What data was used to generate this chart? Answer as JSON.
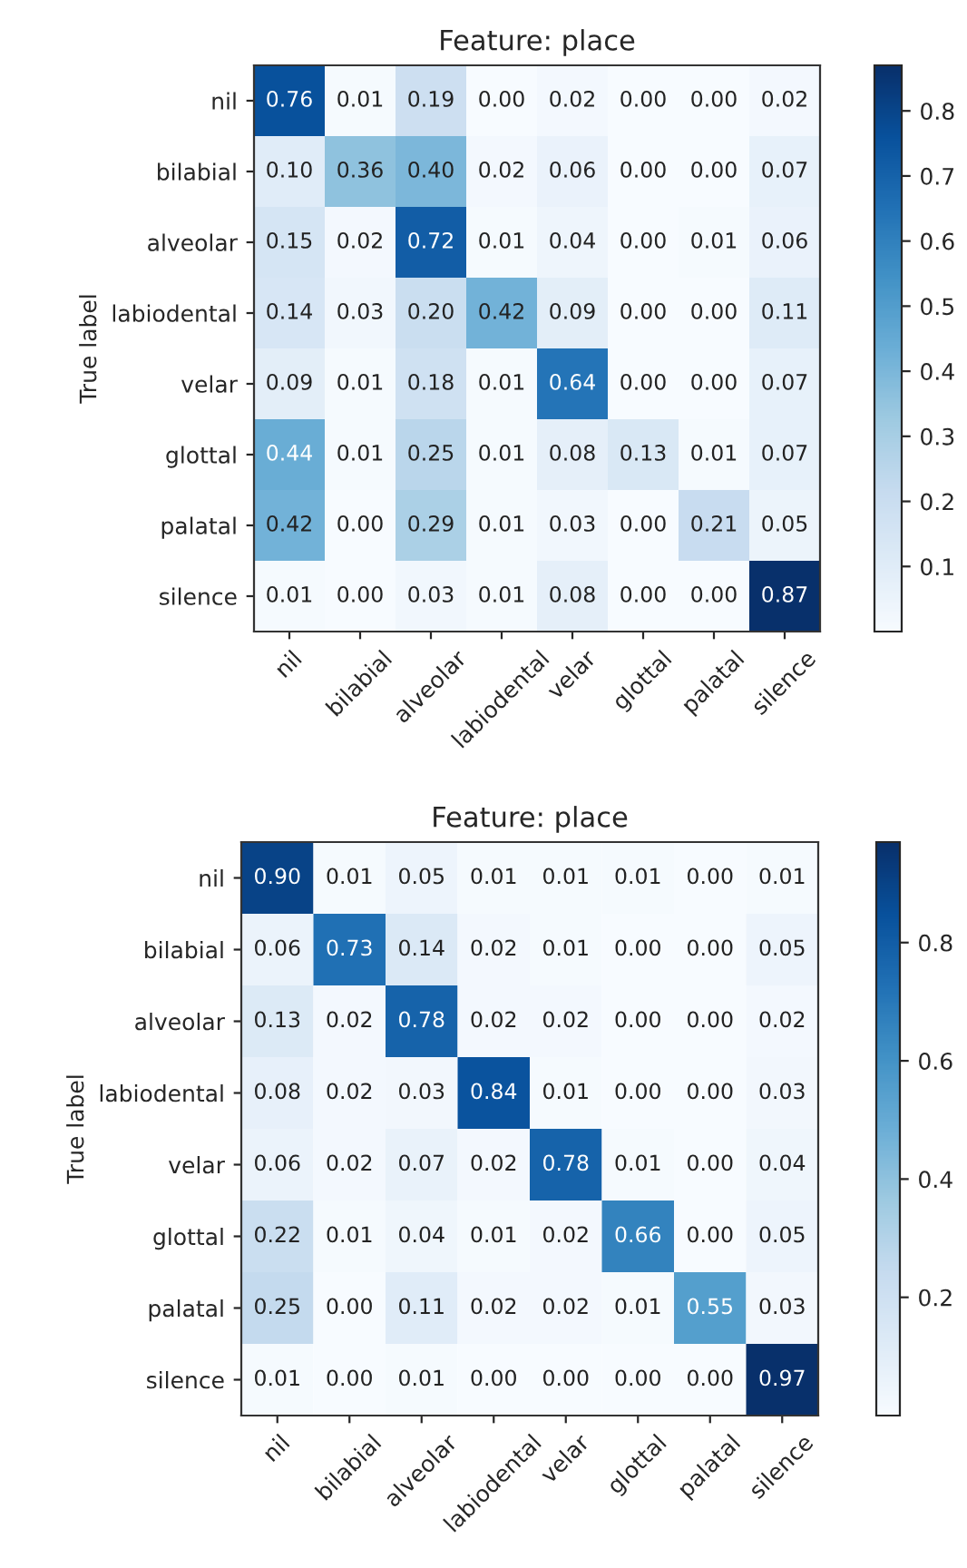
{
  "chart_data": [
    {
      "type": "heatmap",
      "title": "Feature: place",
      "ylabel": "True label",
      "categories": [
        "nil",
        "bilabial",
        "alveolar",
        "labiodental",
        "velar",
        "glottal",
        "palatal",
        "silence"
      ],
      "y_categories": [
        "nil",
        "bilabial",
        "alveolar",
        "labiodental",
        "velar",
        "glottal",
        "palatal",
        "silence"
      ],
      "cells": [
        [
          0.76,
          0.01,
          0.19,
          0.0,
          0.02,
          0.0,
          0.0,
          0.02
        ],
        [
          0.1,
          0.36,
          0.4,
          0.02,
          0.06,
          0.0,
          0.0,
          0.07
        ],
        [
          0.15,
          0.02,
          0.72,
          0.01,
          0.04,
          0.0,
          0.01,
          0.06
        ],
        [
          0.14,
          0.03,
          0.2,
          0.42,
          0.09,
          0.0,
          0.0,
          0.11
        ],
        [
          0.09,
          0.01,
          0.18,
          0.01,
          0.64,
          0.0,
          0.0,
          0.07
        ],
        [
          0.44,
          0.01,
          0.25,
          0.01,
          0.08,
          0.13,
          0.01,
          0.07
        ],
        [
          0.42,
          0.0,
          0.29,
          0.01,
          0.03,
          0.0,
          0.21,
          0.05
        ],
        [
          0.01,
          0.0,
          0.03,
          0.01,
          0.08,
          0.0,
          0.0,
          0.87
        ]
      ],
      "cell_labels": [
        [
          "0.76",
          "0.01",
          "0.19",
          "0.00",
          "0.02",
          "0.00",
          "0.00",
          "0.02"
        ],
        [
          "0.10",
          "0.36",
          "0.40",
          "0.02",
          "0.06",
          "0.00",
          "0.00",
          "0.07"
        ],
        [
          "0.15",
          "0.02",
          "0.72",
          "0.01",
          "0.04",
          "0.00",
          "0.01",
          "0.06"
        ],
        [
          "0.14",
          "0.03",
          "0.20",
          "0.42",
          "0.09",
          "0.00",
          "0.00",
          "0.11"
        ],
        [
          "0.09",
          "0.01",
          "0.18",
          "0.01",
          "0.64",
          "0.00",
          "0.00",
          "0.07"
        ],
        [
          "0.44",
          "0.01",
          "0.25",
          "0.01",
          "0.08",
          "0.13",
          "0.01",
          "0.07"
        ],
        [
          "0.42",
          "0.00",
          "0.29",
          "0.01",
          "0.03",
          "0.00",
          "0.21",
          "0.05"
        ],
        [
          "0.01",
          "0.00",
          "0.03",
          "0.01",
          "0.08",
          "0.00",
          "0.00",
          "0.87"
        ]
      ],
      "clim": [
        0.0,
        0.87
      ],
      "cticks": [
        0.1,
        0.2,
        0.3,
        0.4,
        0.5,
        0.6,
        0.7,
        0.8
      ]
    },
    {
      "type": "heatmap",
      "title": "Feature: place",
      "ylabel": "True label",
      "categories": [
        "nil",
        "bilabial",
        "alveolar",
        "labiodental",
        "velar",
        "glottal",
        "palatal",
        "silence"
      ],
      "y_categories": [
        "nil",
        "bilabial",
        "alveolar",
        "labiodental",
        "velar",
        "glottal",
        "palatal",
        "silence"
      ],
      "cells": [
        [
          0.9,
          0.01,
          0.05,
          0.01,
          0.01,
          0.01,
          0.0,
          0.01
        ],
        [
          0.06,
          0.73,
          0.14,
          0.02,
          0.01,
          0.0,
          0.0,
          0.05
        ],
        [
          0.13,
          0.02,
          0.78,
          0.02,
          0.02,
          0.0,
          0.0,
          0.02
        ],
        [
          0.08,
          0.02,
          0.03,
          0.84,
          0.01,
          0.0,
          0.0,
          0.03
        ],
        [
          0.06,
          0.02,
          0.07,
          0.02,
          0.78,
          0.01,
          0.0,
          0.04
        ],
        [
          0.22,
          0.01,
          0.04,
          0.01,
          0.02,
          0.66,
          0.0,
          0.05
        ],
        [
          0.25,
          0.0,
          0.11,
          0.02,
          0.02,
          0.01,
          0.55,
          0.03
        ],
        [
          0.01,
          0.0,
          0.01,
          0.0,
          0.0,
          0.0,
          0.0,
          0.97
        ]
      ],
      "cell_labels": [
        [
          "0.90",
          "0.01",
          "0.05",
          "0.01",
          "0.01",
          "0.01",
          "0.00",
          "0.01"
        ],
        [
          "0.06",
          "0.73",
          "0.14",
          "0.02",
          "0.01",
          "0.00",
          "0.00",
          "0.05"
        ],
        [
          "0.13",
          "0.02",
          "0.78",
          "0.02",
          "0.02",
          "0.00",
          "0.00",
          "0.02"
        ],
        [
          "0.08",
          "0.02",
          "0.03",
          "0.84",
          "0.01",
          "0.00",
          "0.00",
          "0.03"
        ],
        [
          "0.06",
          "0.02",
          "0.07",
          "0.02",
          "0.78",
          "0.01",
          "0.00",
          "0.04"
        ],
        [
          "0.22",
          "0.01",
          "0.04",
          "0.01",
          "0.02",
          "0.66",
          "0.00",
          "0.05"
        ],
        [
          "0.25",
          "0.00",
          "0.11",
          "0.02",
          "0.02",
          "0.01",
          "0.55",
          "0.03"
        ],
        [
          "0.01",
          "0.00",
          "0.01",
          "0.00",
          "0.00",
          "0.00",
          "0.00",
          "0.97"
        ]
      ],
      "clim": [
        0.0,
        0.97
      ],
      "cticks": [
        0.2,
        0.4,
        0.6,
        0.8
      ]
    }
  ]
}
